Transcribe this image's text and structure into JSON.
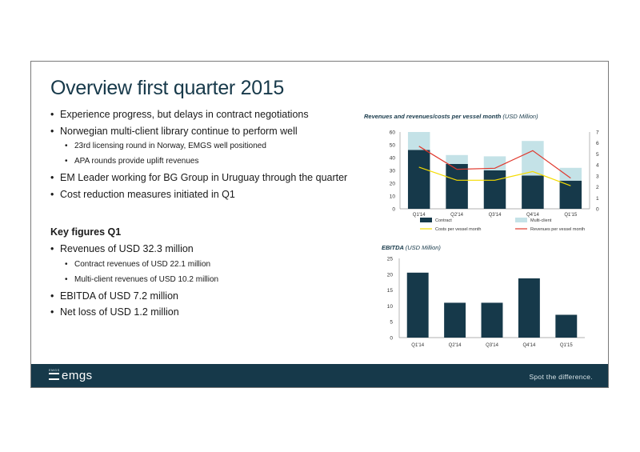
{
  "title": "Overview first quarter 2015",
  "bullets": [
    {
      "text": "Experience progress, but delays in contract negotiations",
      "level": 1
    },
    {
      "text": "Norwegian multi-client library continue to perform well",
      "level": 1
    },
    {
      "text": "23rd licensing round in Norway, EMGS well positioned",
      "level": 2
    },
    {
      "text": "APA rounds provide uplift revenues",
      "level": 2
    },
    {
      "text": "EM Leader working for BG Group in Uruguay through the quarter",
      "level": 1
    },
    {
      "text": "Cost reduction measures initiated in Q1",
      "level": 1
    }
  ],
  "key_figures": {
    "heading": "Key figures Q1",
    "items": [
      {
        "text": "Revenues of USD 32.3 million",
        "level": 1
      },
      {
        "text": "Contract revenues of USD 22.1 million",
        "level": 2
      },
      {
        "text": "Multi-client revenues of USD 10.2 million",
        "level": 2
      },
      {
        "text": "EBITDA of USD 7.2 million",
        "level": 1
      },
      {
        "text": "Net loss of USD 1.2 million",
        "level": 1
      }
    ]
  },
  "chart1_title": "Revenues and revenues/costs per vessel month",
  "chart1_unit": "(USD Million)",
  "chart2_title": "EBITDA",
  "chart2_unit": "(USD Million)",
  "footer": {
    "logo_text": "emgs",
    "logo_small": "EMGS",
    "tagline": "Spot the difference."
  },
  "colors": {
    "contract": "#16394a",
    "multi_client": "#c4e2e7",
    "costs_line": "#f5dc00",
    "revenue_line": "#e0382d",
    "footer": "#16394a",
    "title": "#17394a"
  },
  "chart_data": [
    {
      "type": "bar",
      "stacked": true,
      "categories": [
        "Q1'14",
        "Q2'14",
        "Q3'14",
        "Q4'14",
        "Q1'15"
      ],
      "series": [
        {
          "name": "Contract",
          "values": [
            46,
            35,
            30,
            26,
            22
          ]
        },
        {
          "name": "Multi-client",
          "values": [
            14,
            7,
            11,
            27,
            10
          ]
        }
      ],
      "lines_secondary_axis": [
        {
          "name": "Costs per vessel month",
          "values": [
            3.8,
            2.6,
            2.6,
            3.4,
            2.1
          ]
        },
        {
          "name": "Revenues per vessel month",
          "values": [
            5.7,
            3.6,
            3.7,
            5.3,
            2.8
          ]
        }
      ],
      "ylim": [
        0,
        60
      ],
      "yticks": [
        0,
        10,
        20,
        30,
        40,
        50,
        60
      ],
      "y2lim": [
        0,
        7
      ],
      "y2ticks": [
        0,
        1,
        2,
        3,
        4,
        5,
        6,
        7
      ],
      "legend_position": "bottom"
    },
    {
      "type": "bar",
      "categories": [
        "Q1'14",
        "Q2'14",
        "Q3'14",
        "Q4'14",
        "Q1'15"
      ],
      "values": [
        20.5,
        11,
        11,
        18.7,
        7.2
      ],
      "ylim": [
        0,
        25
      ],
      "yticks": [
        0,
        5,
        10,
        15,
        20,
        25
      ]
    }
  ]
}
